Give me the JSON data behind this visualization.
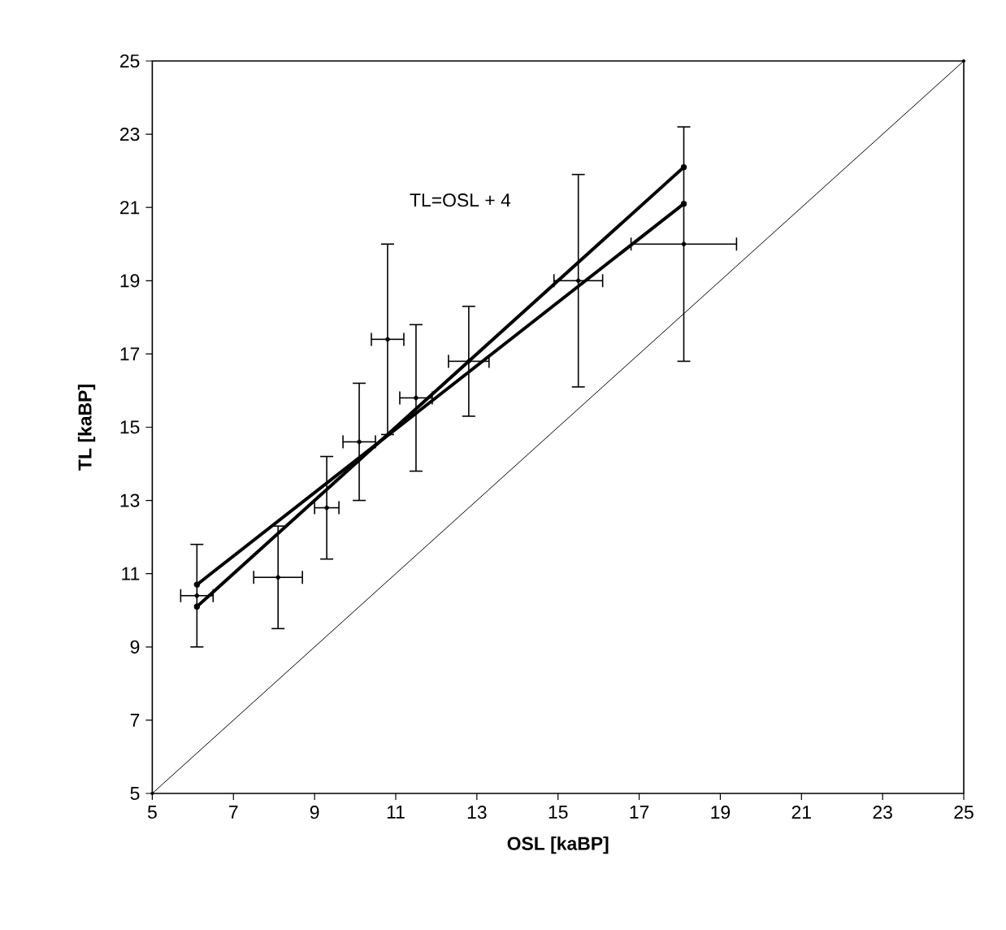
{
  "chart_data": {
    "type": "scatter",
    "xlabel": "OSL [kaBP]",
    "ylabel": "TL [kaBP]",
    "annotations": [
      "TL=OSL + 4"
    ],
    "xlim": [
      5,
      25
    ],
    "ylim": [
      5,
      25
    ],
    "xticks": [
      5,
      7,
      9,
      11,
      13,
      15,
      17,
      19,
      21,
      23,
      25
    ],
    "yticks": [
      5,
      7,
      9,
      11,
      13,
      15,
      17,
      19,
      21,
      23,
      25
    ],
    "grid": false,
    "marker": "circle",
    "series": [
      {
        "color": "#000000",
        "x": [
          6.1,
          8.1,
          9.3,
          10.1,
          10.8,
          11.5,
          12.8,
          15.5,
          18.1
        ],
        "values": [
          10.4,
          10.9,
          12.8,
          14.6,
          17.4,
          15.8,
          16.8,
          19.0,
          20.0
        ],
        "errors": [
          1.4,
          1.4,
          1.4,
          1.6,
          2.6,
          2.0,
          1.5,
          2.9,
          3.2
        ],
        "xerrors": [
          0.4,
          0.6,
          0.3,
          0.4,
          0.4,
          0.4,
          0.5,
          0.6,
          1.3
        ]
      },
      {
        "type": "line",
        "color": "#000000",
        "x": [
          6.1,
          18.1
        ],
        "values": [
          10.1,
          22.1
        ]
      },
      {
        "type": "line",
        "color": "#000000",
        "x": [
          6.1,
          18.1
        ],
        "values": [
          10.7,
          21.1
        ]
      },
      {
        "type": "line",
        "color": "#000000",
        "x": [
          5,
          25
        ],
        "values": [
          5,
          25
        ]
      }
    ]
  }
}
